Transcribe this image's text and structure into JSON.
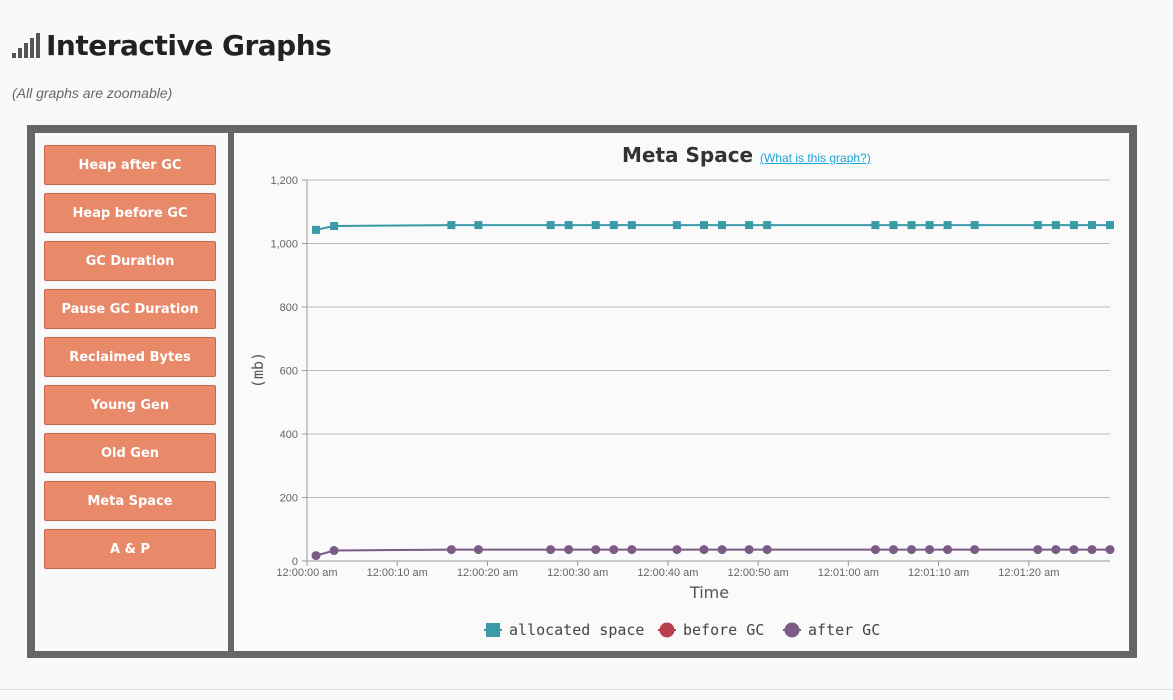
{
  "page": {
    "title": "Interactive Graphs",
    "subtitle": "(All graphs are zoomable)",
    "title_icon": "signal-bars-icon"
  },
  "nav": {
    "items": [
      {
        "label": "Heap after GC"
      },
      {
        "label": "Heap before GC"
      },
      {
        "label": "GC Duration"
      },
      {
        "label": "Pause GC Duration"
      },
      {
        "label": "Reclaimed Bytes"
      },
      {
        "label": "Young Gen"
      },
      {
        "label": "Old Gen"
      },
      {
        "label": "Meta Space"
      },
      {
        "label": "A & P"
      }
    ],
    "button_color": "#e8896a"
  },
  "chart_data": {
    "type": "line",
    "title": "Meta Space",
    "help_link": "(What is this graph?)",
    "xlabel": "Time",
    "ylabel": "(mb)",
    "ylim": [
      0,
      1200
    ],
    "yticks": [
      0,
      200,
      400,
      600,
      800,
      1000,
      1200
    ],
    "ytick_labels": [
      "0",
      "200",
      "400",
      "600",
      "800",
      "1,000",
      "1,200"
    ],
    "xlim": [
      0,
      89
    ],
    "xticks": [
      0,
      10,
      20,
      30,
      40,
      50,
      60,
      70,
      80
    ],
    "xtick_labels": [
      "12:00:00 am",
      "12:00:10 am",
      "12:00:20 am",
      "12:00:30 am",
      "12:00:40 am",
      "12:00:50 am",
      "12:01:00 am",
      "12:01:10 am",
      "12:01:20 am"
    ],
    "grid": true,
    "legend_position": "bottom-center",
    "x": [
      1,
      3,
      16,
      19,
      27,
      29,
      32,
      34,
      36,
      41,
      44,
      46,
      49,
      51,
      63,
      65,
      67,
      69,
      71,
      74,
      81,
      83,
      85,
      87,
      89
    ],
    "series": [
      {
        "name": "allocated space",
        "color": "#3a9aa6",
        "marker": "square",
        "values": [
          1043,
          1055,
          1058,
          1058,
          1058,
          1058,
          1058,
          1058,
          1058,
          1058,
          1058,
          1058,
          1058,
          1058,
          1058,
          1058,
          1058,
          1058,
          1058,
          1058,
          1058,
          1058,
          1058,
          1058,
          1058
        ]
      },
      {
        "name": "before GC",
        "color": "#b83f4e",
        "marker": "circle",
        "visible": false,
        "values": [
          17,
          33,
          36,
          36,
          36,
          36,
          36,
          36,
          36,
          36,
          36,
          36,
          36,
          36,
          36,
          36,
          36,
          36,
          36,
          36,
          36,
          36,
          36,
          36,
          36
        ]
      },
      {
        "name": "after GC",
        "color": "#7b5a85",
        "marker": "circle",
        "values": [
          17,
          33,
          36,
          36,
          36,
          36,
          36,
          36,
          36,
          36,
          36,
          36,
          36,
          36,
          36,
          36,
          36,
          36,
          36,
          36,
          36,
          36,
          36,
          36,
          36
        ]
      }
    ]
  }
}
